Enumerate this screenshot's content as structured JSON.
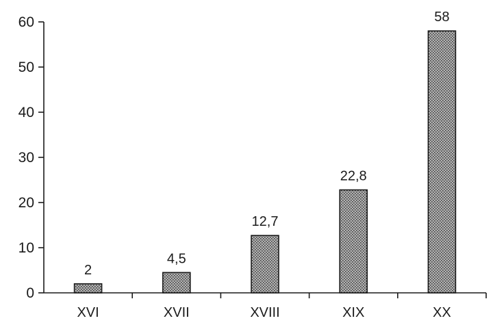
{
  "chart_data": {
    "type": "bar",
    "title": "",
    "xlabel": "",
    "ylabel": "",
    "categories": [
      "XVI",
      "XVII",
      "XVIII",
      "XIX",
      "XX"
    ],
    "values": [
      2,
      4.5,
      12.7,
      22.8,
      58
    ],
    "data_labels": [
      "2",
      "4,5",
      "12,7",
      "22,8",
      "58"
    ],
    "ylim": [
      0,
      60
    ],
    "yticks": [
      0,
      10,
      20,
      30,
      40,
      50,
      60
    ],
    "ytick_labels": [
      "0",
      "10",
      "20",
      "30",
      "40",
      "50",
      "60"
    ],
    "grid": false,
    "legend": "none",
    "bar_fill_color": "#a8a8a8",
    "bar_pattern_color": "#4a4a4a"
  }
}
